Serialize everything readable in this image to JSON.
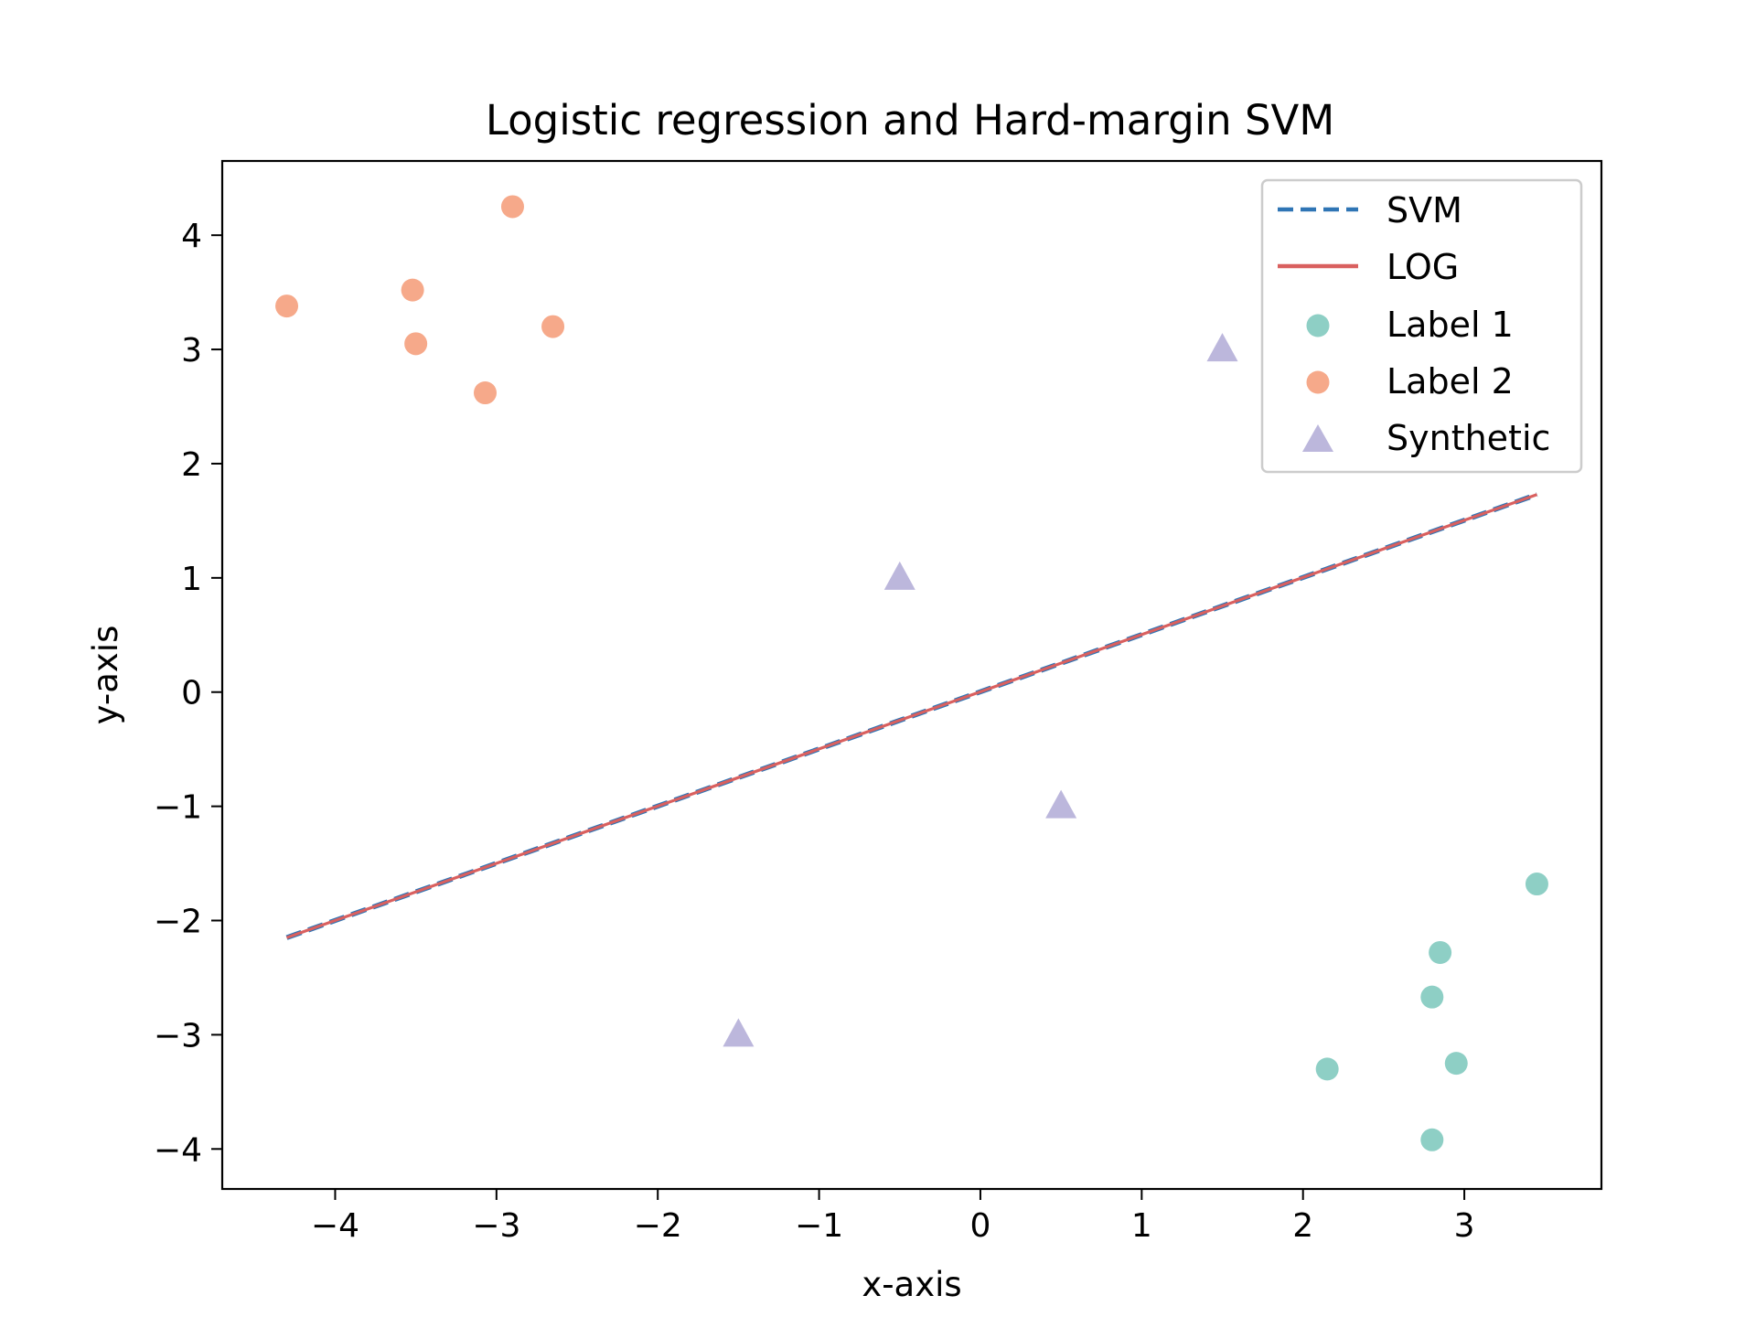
{
  "chart_data": {
    "type": "scatter",
    "title": "Logistic regression and Hard-margin SVM",
    "xlabel": "x-axis",
    "ylabel": "y-axis",
    "xlim": [
      -4.7,
      3.85
    ],
    "ylim": [
      -4.35,
      4.65
    ],
    "xticks": [
      -4,
      -3,
      -2,
      -1,
      0,
      1,
      2,
      3
    ],
    "yticks": [
      -4,
      -3,
      -2,
      -1,
      0,
      1,
      2,
      3,
      4
    ],
    "xtick_labels": [
      "−4",
      "−3",
      "−2",
      "−1",
      "0",
      "1",
      "2",
      "3"
    ],
    "ytick_labels": [
      "−4",
      "−3",
      "−2",
      "−1",
      "0",
      "1",
      "2",
      "3",
      "4"
    ],
    "grid": false,
    "legend_position": "top-right",
    "lines": [
      {
        "name": "SVM",
        "style": "dashed",
        "color": "#2f75b5",
        "x": [
          -4.3,
          3.45
        ],
        "y": [
          -2.15,
          1.73
        ]
      },
      {
        "name": "LOG",
        "style": "solid",
        "color": "#d9605f",
        "x": [
          -4.3,
          3.45
        ],
        "y": [
          -2.15,
          1.73
        ]
      }
    ],
    "series": [
      {
        "name": "Label 1",
        "marker": "circle",
        "color": "#8ecfc5",
        "points": [
          [
            3.45,
            -1.68
          ],
          [
            2.85,
            -2.28
          ],
          [
            2.8,
            -2.67
          ],
          [
            2.95,
            -3.25
          ],
          [
            2.15,
            -3.3
          ],
          [
            2.8,
            -3.92
          ]
        ]
      },
      {
        "name": "Label 2",
        "marker": "circle",
        "color": "#f6a98a",
        "points": [
          [
            -2.9,
            4.25
          ],
          [
            -4.3,
            3.38
          ],
          [
            -3.52,
            3.52
          ],
          [
            -3.5,
            3.05
          ],
          [
            -2.65,
            3.2
          ],
          [
            -3.07,
            2.62
          ]
        ]
      },
      {
        "name": "Synthetic",
        "marker": "triangle",
        "color": "#bcb7dc",
        "points": [
          [
            1.5,
            3.0
          ],
          [
            -0.5,
            1.0
          ],
          [
            0.5,
            -1.0
          ],
          [
            -1.5,
            -3.0
          ]
        ]
      }
    ]
  }
}
